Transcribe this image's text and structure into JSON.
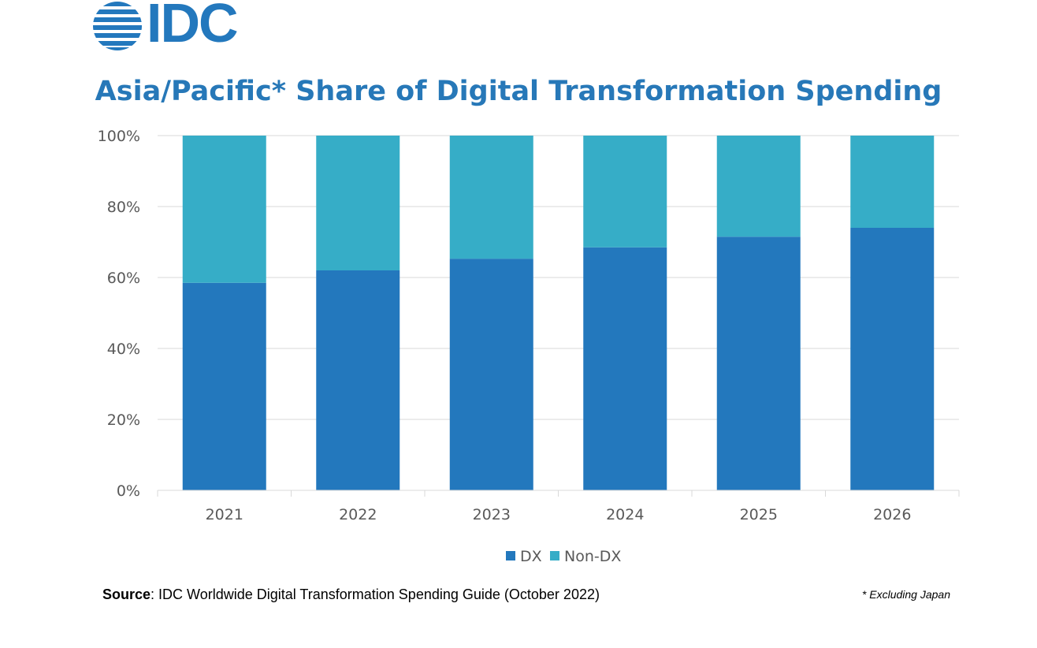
{
  "logo": {
    "text": "IDC",
    "color": "#2378bd"
  },
  "chart_data": {
    "type": "bar",
    "stacked": true,
    "title": "Asia/Pacific* Share of Digital Transformation Spending",
    "categories": [
      "2021",
      "2022",
      "2023",
      "2024",
      "2025",
      "2026"
    ],
    "series": [
      {
        "name": "DX",
        "color": "#2378bd",
        "values": [
          58.5,
          62.0,
          65.3,
          68.5,
          71.5,
          74.0
        ]
      },
      {
        "name": "Non-DX",
        "color": "#36adc7",
        "values": [
          41.5,
          38.0,
          34.7,
          31.5,
          28.5,
          26.0
        ]
      }
    ],
    "ylim": [
      0,
      100
    ],
    "yticks": [
      "0%",
      "20%",
      "40%",
      "60%",
      "80%",
      "100%"
    ],
    "ytick_values": [
      0,
      20,
      40,
      60,
      80,
      100
    ],
    "grid": true,
    "legend": "bottom-center",
    "xlabel": "",
    "ylabel": ""
  },
  "source": {
    "label": "Source",
    "text": ": IDC Worldwide Digital Transformation Spending Guide (October 2022)"
  },
  "footnote": "* Excluding Japan"
}
